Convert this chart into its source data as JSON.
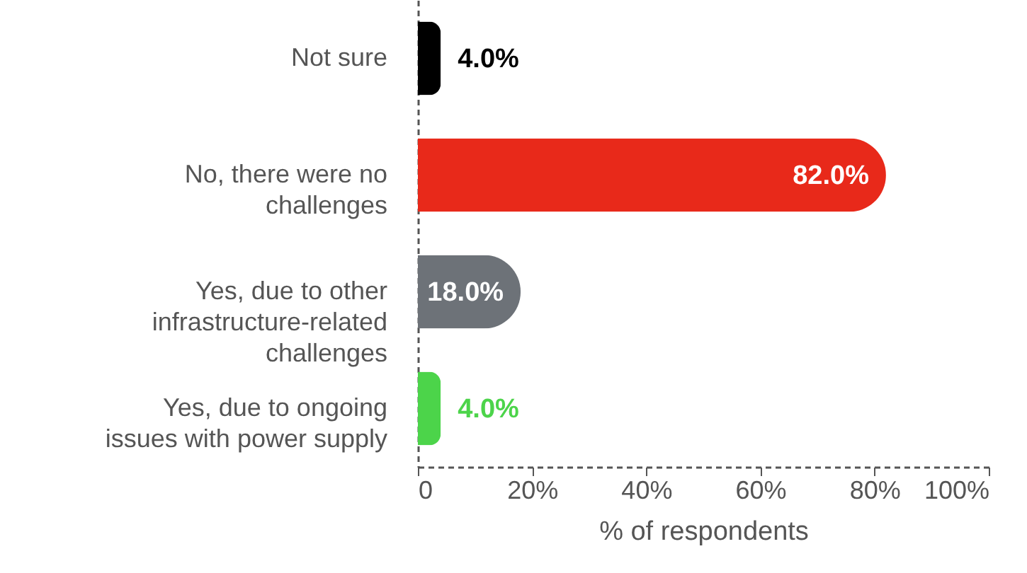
{
  "chart_data": {
    "type": "bar",
    "orientation": "horizontal",
    "categories": [
      "Not sure",
      "No, there were no challenges",
      "Yes, due to other infrastructure-related challenges",
      "Yes, due to ongoing issues with power supply"
    ],
    "values": [
      4.0,
      82.0,
      18.0,
      4.0
    ],
    "colors": [
      "#000000",
      "#e8291a",
      "#6d7278",
      "#4cd44a"
    ],
    "value_labels": [
      "4.0%",
      "82.0%",
      "18.0%",
      "4.0%"
    ],
    "xlabel": "% of respondents",
    "xlim": [
      0,
      100
    ],
    "xticks": [
      {
        "value": 0,
        "label": "0"
      },
      {
        "value": 20,
        "label": "20%"
      },
      {
        "value": 40,
        "label": "40%"
      },
      {
        "value": 60,
        "label": "60%"
      },
      {
        "value": 80,
        "label": "80%"
      },
      {
        "value": 100,
        "label": "100%"
      }
    ],
    "grid": false
  }
}
